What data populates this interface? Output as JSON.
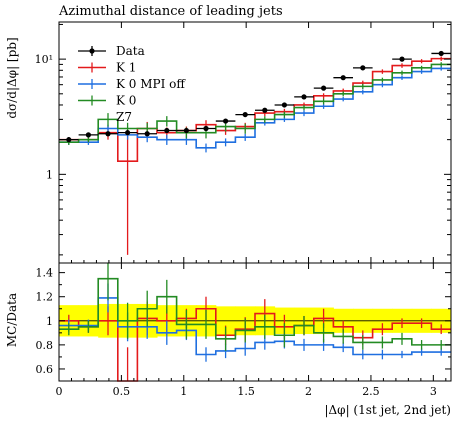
{
  "chart_data": {
    "type": "line",
    "title": "Azimuthal distance of leading jets",
    "xlabel": "|Δφ| (1st jet, 2nd jet)",
    "ylabel": "dσ/d|Δφ| [pb]",
    "ratio_ylabel": "MC/Data",
    "yscale": "log",
    "xlim": [
      0,
      3.1416
    ],
    "ylim": [
      0.17,
      21
    ],
    "ratio_ylim": [
      0.5,
      1.48
    ],
    "x_ticks": [
      0,
      0.5,
      1,
      1.5,
      2,
      2.5,
      3
    ],
    "x_tick_labels": [
      "0",
      "0.5",
      "1",
      "1.5",
      "2",
      "2.5",
      "3"
    ],
    "y_ticks": [
      1,
      10
    ],
    "y_tick_labels": [
      "1",
      "10¹"
    ],
    "ratio_ticks": [
      0.6,
      0.8,
      1,
      1.2,
      1.4
    ],
    "ratio_tick_labels": [
      "0.6",
      "0.8",
      "1",
      "1.2",
      "1.4"
    ],
    "legend_position": "top-left",
    "bin_edges": [
      0,
      0.1571,
      0.3142,
      0.4712,
      0.6283,
      0.7854,
      0.9425,
      1.0996,
      1.2566,
      1.4137,
      1.5708,
      1.7279,
      1.885,
      2.042,
      2.1991,
      2.3562,
      2.5133,
      2.6704,
      2.8274,
      2.9845,
      3.1416
    ],
    "uncertainty_band": {
      "color": "#ffff00",
      "low": [
        0.87,
        0.87,
        0.86,
        0.86,
        0.86,
        0.87,
        0.87,
        0.87,
        0.88,
        0.88,
        0.88,
        0.89,
        0.89,
        0.89,
        0.9,
        0.9,
        0.9,
        0.9,
        0.9,
        0.9
      ],
      "high": [
        1.13,
        1.13,
        1.14,
        1.14,
        1.14,
        1.13,
        1.13,
        1.13,
        1.12,
        1.12,
        1.12,
        1.11,
        1.11,
        1.11,
        1.1,
        1.1,
        1.1,
        1.1,
        1.1,
        1.1
      ]
    },
    "series": [
      {
        "name": "Data",
        "kind": "points",
        "color": "#000000",
        "values": [
          2.0,
          2.2,
          2.25,
          2.3,
          2.25,
          2.4,
          2.4,
          2.5,
          2.9,
          3.3,
          3.6,
          4.0,
          4.7,
          5.6,
          6.9,
          8.4,
          10.0,
          11.2
        ],
        "errors": [
          0.1,
          0.1,
          0.1,
          0.1,
          0.1,
          0.1,
          0.1,
          0.12,
          0.12,
          0.14,
          0.15,
          0.16,
          0.2,
          0.25,
          0.3,
          0.35,
          0.4,
          0.45
        ],
        "bins": [
          0,
          1,
          2,
          3,
          4,
          5,
          6,
          7,
          8,
          9,
          10,
          11,
          12,
          13,
          14,
          15,
          17,
          19
        ]
      },
      {
        "name": "K 1",
        "kind": "hist",
        "color": "#e31a1c",
        "values": [
          2.0,
          2.0,
          2.3,
          1.3,
          2.5,
          2.3,
          2.4,
          2.7,
          2.4,
          2.6,
          3.4,
          3.5,
          4.0,
          4.8,
          5.3,
          6.2,
          7.8,
          8.8,
          9.6,
          10.1
        ],
        "errors": [
          0.1,
          0.1,
          0.3,
          1.1,
          0.35,
          0.25,
          0.2,
          0.25,
          0.2,
          0.2,
          0.2,
          0.2,
          0.2,
          0.25,
          0.25,
          0.3,
          0.35,
          0.4,
          0.4,
          0.45
        ],
        "ratio": [
          1.0,
          0.95,
          1.0,
          0.48,
          1.02,
          1.0,
          1.02,
          1.1,
          0.88,
          0.93,
          1.06,
          0.95,
          0.96,
          1.02,
          0.95,
          0.86,
          0.93,
          0.98,
          0.98,
          0.93
        ],
        "ratio_err": [
          0.05,
          0.05,
          0.12,
          0.3,
          0.14,
          0.12,
          0.08,
          0.1,
          0.08,
          0.1,
          0.12,
          0.1,
          0.08,
          0.08,
          0.05,
          0.06,
          0.05,
          0.04,
          0.04,
          0.04
        ]
      },
      {
        "name": "K 0 MPI off",
        "kind": "hist",
        "color": "#1f6fe0",
        "values": [
          1.9,
          1.9,
          2.5,
          2.2,
          2.1,
          2.0,
          2.0,
          1.7,
          1.9,
          2.1,
          2.8,
          3.0,
          3.4,
          3.9,
          4.5,
          5.2,
          6.0,
          6.9,
          7.8,
          8.3
        ],
        "errors": [
          0.1,
          0.1,
          0.2,
          0.2,
          0.2,
          0.2,
          0.2,
          0.15,
          0.15,
          0.15,
          0.15,
          0.15,
          0.2,
          0.2,
          0.2,
          0.25,
          0.3,
          0.3,
          0.35,
          0.35
        ],
        "ratio": [
          0.96,
          0.96,
          1.19,
          0.95,
          0.95,
          0.9,
          0.92,
          0.72,
          0.75,
          0.77,
          0.82,
          0.83,
          0.8,
          0.8,
          0.78,
          0.72,
          0.72,
          0.72,
          0.74,
          0.74
        ],
        "ratio_err": [
          0.05,
          0.05,
          0.12,
          0.12,
          0.1,
          0.1,
          0.08,
          0.06,
          0.06,
          0.06,
          0.06,
          0.06,
          0.05,
          0.05,
          0.04,
          0.04,
          0.04,
          0.03,
          0.03,
          0.03
        ]
      },
      {
        "name": "K 0",
        "kind": "hist",
        "color": "#238b23",
        "values": [
          1.9,
          2.0,
          3.0,
          2.5,
          2.5,
          2.9,
          2.3,
          2.3,
          2.6,
          2.5,
          3.0,
          3.3,
          3.8,
          4.3,
          5.0,
          5.8,
          6.6,
          7.6,
          8.4,
          9.0
        ],
        "errors": [
          0.1,
          0.1,
          0.4,
          0.3,
          0.3,
          0.3,
          0.25,
          0.25,
          0.25,
          0.25,
          0.2,
          0.2,
          0.2,
          0.25,
          0.25,
          0.3,
          0.3,
          0.35,
          0.35,
          0.4
        ],
        "ratio": [
          0.93,
          0.95,
          1.35,
          1.0,
          1.1,
          1.2,
          0.97,
          0.97,
          0.85,
          0.92,
          0.95,
          0.88,
          0.96,
          0.9,
          0.87,
          0.82,
          0.82,
          0.85,
          0.8,
          0.8
        ],
        "ratio_err": [
          0.05,
          0.05,
          0.18,
          0.15,
          0.15,
          0.14,
          0.12,
          0.12,
          0.1,
          0.1,
          0.1,
          0.1,
          0.08,
          0.08,
          0.06,
          0.06,
          0.05,
          0.05,
          0.04,
          0.04
        ]
      },
      {
        "name": "Z7",
        "kind": "legend-only",
        "color": "#333333"
      }
    ]
  }
}
